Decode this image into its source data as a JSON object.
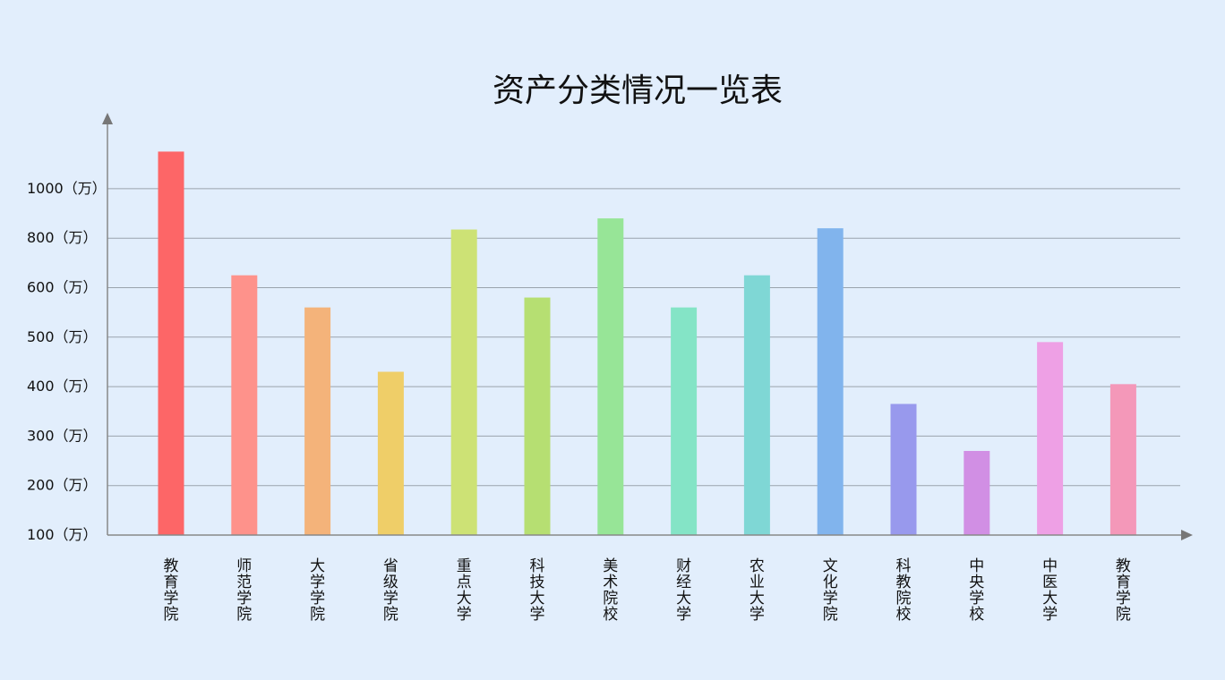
{
  "chart_data": {
    "type": "bar",
    "title": "资产分类情况一览表",
    "xlabel": "",
    "ylabel": "",
    "y_ticks": [
      "100（万）",
      "200（万）",
      "300（万）",
      "400（万）",
      "500（万）",
      "600（万）",
      "800（万）",
      "1000（万）"
    ],
    "y_tick_values": [
      100,
      200,
      300,
      400,
      500,
      600,
      800,
      1000
    ],
    "categories": [
      "教育学院",
      "师范学院",
      "大学学院",
      "省级学院",
      "重点大学",
      "科技大学",
      "美术院校",
      "财经大学",
      "农业大学",
      "文化学院",
      "科教院校",
      "中央学校",
      "中医大学",
      "教育学院"
    ],
    "values": [
      1150,
      650,
      560,
      430,
      835,
      580,
      880,
      560,
      650,
      840,
      365,
      270,
      490,
      405
    ],
    "colors": [
      "#fd6667",
      "#fe928b",
      "#f4b37a",
      "#efce68",
      "#cde275",
      "#b6df72",
      "#97e597",
      "#84e4c6",
      "#7fd7d5",
      "#81b4ed",
      "#9899ed",
      "#d18fe4",
      "#eea0e5",
      "#f498b9"
    ],
    "grid": true,
    "legend": "none"
  }
}
